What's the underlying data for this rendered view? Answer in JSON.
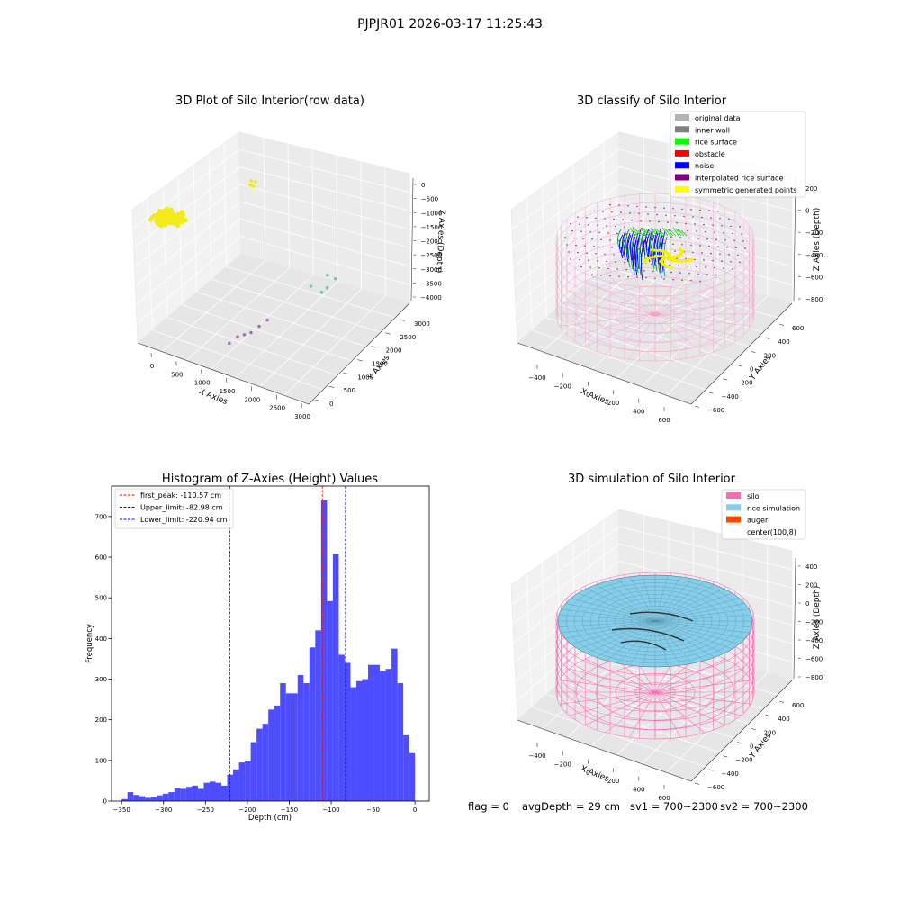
{
  "figure": {
    "suptitle": "PJPJR01 2026-03-17 11:25:43",
    "status": {
      "flag": "flag = 0",
      "avg_depth": "avgDepth = 29 cm",
      "sv1": "sv1 = 700~2300",
      "sv2": "sv2 = 700~2300"
    }
  },
  "panels": {
    "raw": {
      "title": "3D Plot of Silo Interior(row data)",
      "xlabel": "X Axies",
      "ylabel": "Y Axies",
      "zlabel": "Z Axies (Depth)",
      "xticks": [
        "0",
        "500",
        "1000",
        "1500",
        "2000",
        "2500",
        "3000"
      ],
      "yticks": [
        "0",
        "500",
        "1000",
        "1500",
        "2000",
        "2500",
        "3000"
      ],
      "zticks": [
        "0",
        "−500",
        "−1000",
        "−1500",
        "−2000",
        "−2500",
        "−3000",
        "−3500",
        "−4000"
      ]
    },
    "classify": {
      "title": "3D classify of Silo Interior",
      "xlabel": "X Axies",
      "ylabel": "Y Axies",
      "zlabel": "Z Axies (Depth)",
      "xticks": [
        "−400",
        "−200",
        "0",
        "200",
        "400",
        "600"
      ],
      "yticks": [
        "−600",
        "−400",
        "−200",
        "0",
        "200",
        "400",
        "600"
      ],
      "zticks": [
        "200",
        "0",
        "−200",
        "−400",
        "−600",
        "−800"
      ],
      "zticks_top": "400",
      "legend": [
        {
          "label": "original data",
          "color": "#b3b3b3"
        },
        {
          "label": "inner wall",
          "color": "#808080"
        },
        {
          "label": "rice surface",
          "color": "#00ff00"
        },
        {
          "label": "obstacle",
          "color": "#ff0000"
        },
        {
          "label": "noise",
          "color": "#0000ff"
        },
        {
          "label": "interpolated rice surface",
          "color": "#800080"
        },
        {
          "label": "symmetric generated points",
          "color": "#ffff00"
        }
      ]
    },
    "histogram": {
      "title": "Histogram of Z-Axies (Height) Values",
      "xlabel": "Depth (cm)",
      "ylabel": "Frequency",
      "legend": [
        {
          "label": "first_peak: -110.57 cm",
          "color": "#ff0000"
        },
        {
          "label": "Upper_limit: -82.98 cm",
          "color": "#0000ff"
        },
        {
          "label": "Lower_limit: -220.94 cm",
          "color": "#0000ff"
        }
      ]
    },
    "simulation": {
      "title": "3D simulation of Silo Interior",
      "xlabel": "X Axies",
      "ylabel": "Y Axies",
      "zlabel": "Z Axies (Depth)",
      "xticks": [
        "−400",
        "−200",
        "0",
        "200",
        "400",
        "600"
      ],
      "yticks": [
        "−600",
        "−400",
        "−200",
        "0",
        "200",
        "400",
        "600"
      ],
      "zticks": [
        "400",
        "200",
        "0",
        "−200",
        "−400",
        "−600",
        "−800"
      ],
      "legend": [
        {
          "label": "silo",
          "color": "#ff69b4"
        },
        {
          "label": "rice simulation",
          "color": "#87ceeb"
        },
        {
          "label": "auger",
          "color": "#ff4500"
        },
        {
          "label": "center(100,8)",
          "color": ""
        }
      ]
    }
  },
  "chart_data": [
    {
      "type": "scatter",
      "title": "3D Plot of Silo Interior(row data)",
      "xlabel": "X Axies",
      "ylabel": "Y Axies",
      "zlabel": "Z Axies (Depth)",
      "xlim": [
        -200,
        3000
      ],
      "ylim": [
        -200,
        3300
      ],
      "zlim": [
        -4200,
        300
      ],
      "series": [
        {
          "values": [
            [
              300,
              2900,
              -900
            ],
            [
              320,
              2850,
              -1000
            ],
            [
              350,
              2950,
              -950
            ],
            [
              280,
              2880,
              -1050
            ],
            [
              330,
              2920,
              -1100
            ]
          ]
        },
        {
          "values": [
            [
              2200,
              1400,
              -2000
            ],
            [
              2400,
              1600,
              -2100
            ],
            [
              2300,
              1800,
              -1900
            ],
            [
              2500,
              1700,
              -1800
            ],
            [
              2350,
              1500,
              -2200
            ]
          ]
        },
        {
          "values": [
            [
              1600,
              700,
              -3200
            ],
            [
              1500,
              600,
              -3400
            ],
            [
              1300,
              500,
              -3600
            ],
            [
              1700,
              800,
              -3000
            ],
            [
              1400,
              550,
              -3500
            ],
            [
              1200,
              400,
              -3800
            ]
          ]
        }
      ]
    },
    {
      "type": "scatter",
      "title": "3D classify of Silo Interior",
      "xlabel": "X Axies",
      "ylabel": "Y Axies",
      "zlabel": "Z Axies (Depth)",
      "xlim": [
        -500,
        700
      ],
      "ylim": [
        -650,
        650
      ],
      "zlim": [
        -900,
        400
      ],
      "series": [
        {
          "name": "original data",
          "values": []
        },
        {
          "name": "inner wall",
          "values": []
        },
        {
          "name": "rice surface",
          "values": [
            [
              0,
              100,
              -150
            ],
            [
              -50,
              80,
              -170
            ],
            [
              40,
              60,
              -160
            ],
            [
              -20,
              130,
              -140
            ]
          ]
        },
        {
          "name": "obstacle",
          "values": []
        },
        {
          "name": "noise",
          "values": [
            [
              -120,
              40,
              -200
            ],
            [
              -140,
              0,
              -260
            ],
            [
              -100,
              -30,
              -300
            ],
            [
              -60,
              20,
              -220
            ],
            [
              -160,
              60,
              -240
            ],
            [
              -90,
              70,
              -180
            ]
          ]
        },
        {
          "name": "interpolated rice surface",
          "values": []
        },
        {
          "name": "symmetric generated points",
          "values": [
            [
              60,
              -40,
              -200
            ],
            [
              120,
              -60,
              -230
            ],
            [
              90,
              -20,
              -190
            ],
            [
              150,
              -10,
              -210
            ],
            [
              40,
              -80,
              -250
            ],
            [
              180,
              -30,
              -180
            ]
          ]
        }
      ]
    },
    {
      "type": "bar",
      "title": "Histogram of Z-Axies (Height) Values",
      "xlabel": "Depth (cm)",
      "ylabel": "Frequency",
      "xlim": [
        -362,
        17
      ],
      "ylim": [
        0,
        775
      ],
      "xticks": [
        -350,
        -300,
        -250,
        -200,
        -150,
        -100,
        -50,
        0
      ],
      "yticks": [
        0,
        100,
        200,
        300,
        400,
        500,
        600,
        700
      ],
      "bin_width": 7.0,
      "bin_start": -350,
      "values": [
        5,
        22,
        15,
        12,
        8,
        10,
        14,
        18,
        22,
        32,
        30,
        35,
        38,
        30,
        45,
        48,
        45,
        38,
        65,
        78,
        95,
        98,
        145,
        178,
        190,
        225,
        235,
        290,
        265,
        265,
        310,
        290,
        378,
        420,
        740,
        492,
        608,
        360,
        340,
        280,
        295,
        300,
        335,
        335,
        320,
        325,
        375,
        290,
        162,
        118
      ],
      "vlines": [
        {
          "label": "first_peak: -110.57 cm",
          "x": -110.57,
          "color": "#ff0000"
        },
        {
          "label": "Upper_limit: -82.98 cm",
          "x": -82.98,
          "color": "#0000ff"
        },
        {
          "label": "Lower_limit: -220.94 cm",
          "x": -220.94,
          "color": "#0000ff"
        }
      ]
    },
    {
      "type": "area",
      "title": "3D simulation of Silo Interior",
      "xlabel": "X Axies",
      "ylabel": "Y Axies",
      "zlabel": "Z Axies (Depth)",
      "xlim": [
        -500,
        700
      ],
      "ylim": [
        -650,
        650
      ],
      "zlim": [
        -900,
        450
      ],
      "series": [
        {
          "name": "silo",
          "values": []
        },
        {
          "name": "rice simulation",
          "values": []
        },
        {
          "name": "auger",
          "values": []
        },
        {
          "name": "center(100,8)",
          "values": [
            [
              100,
              8
            ]
          ]
        }
      ]
    }
  ]
}
